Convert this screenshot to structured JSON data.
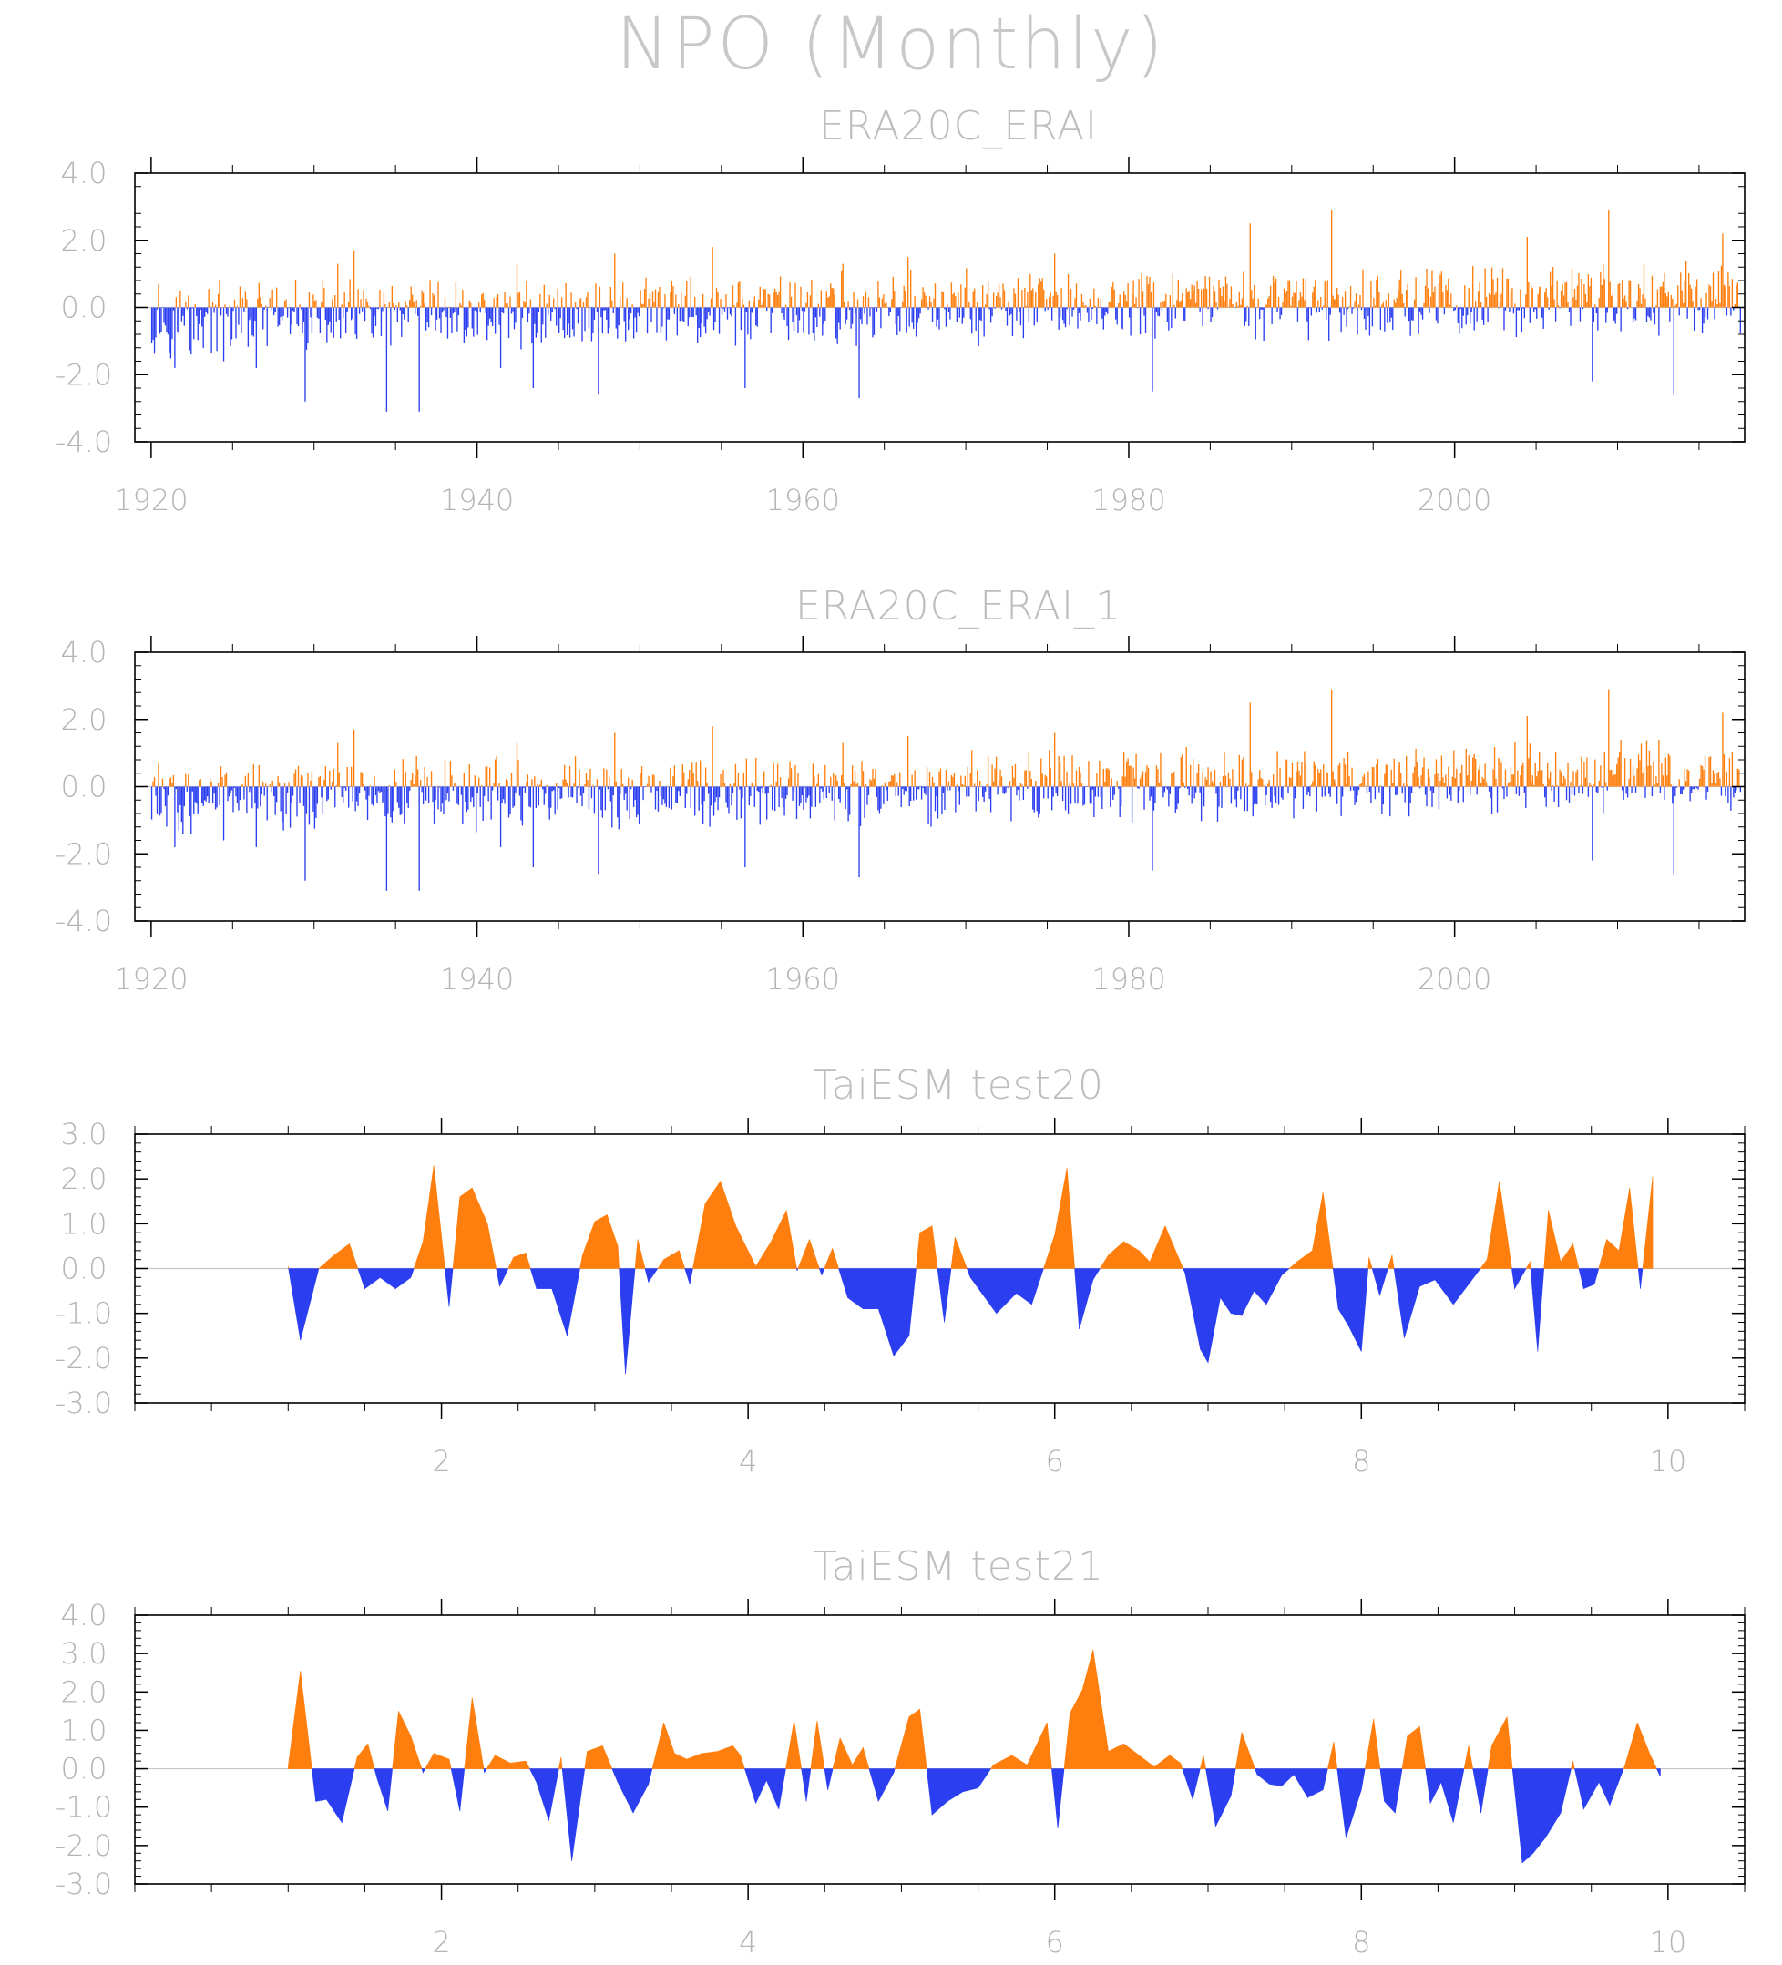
{
  "title": "NPO (Monthly)",
  "colors": {
    "positive": "#ff7f0e",
    "negative": "#2b3ff0",
    "text": "#bdbdbd"
  },
  "chart_data": [
    {
      "type": "bar",
      "title": "ERA20C_ERAI",
      "xlim": [
        1919.0,
        2017.8
      ],
      "ylim": [
        -4.0,
        4.0
      ],
      "yticks": [
        "4.0",
        "2.0",
        "0.0",
        "-2.0",
        "-4.0"
      ],
      "xticks": [
        "1920",
        "1940",
        "1960",
        "1980",
        "2000"
      ],
      "x_start": 1920.0,
      "x_step_months": 1,
      "values_description": "monthly anomaly bars, orange >= 0, blue < 0",
      "envelope_points": [
        {
          "x": 1920,
          "y": 0.7
        },
        {
          "x": 1921,
          "y": -1.8
        },
        {
          "x": 1922,
          "y": -1.4
        },
        {
          "x": 1924,
          "y": -1.6
        },
        {
          "x": 1926,
          "y": -1.8
        },
        {
          "x": 1929,
          "y": -2.8
        },
        {
          "x": 1931,
          "y": 1.3
        },
        {
          "x": 1932,
          "y": 1.7
        },
        {
          "x": 1934,
          "y": -3.1
        },
        {
          "x": 1936,
          "y": -3.1
        },
        {
          "x": 1941,
          "y": -1.8
        },
        {
          "x": 1942,
          "y": 1.3
        },
        {
          "x": 1943,
          "y": -2.4
        },
        {
          "x": 1947,
          "y": -2.6
        },
        {
          "x": 1948,
          "y": 1.6
        },
        {
          "x": 1954,
          "y": 1.8
        },
        {
          "x": 1956,
          "y": -2.4
        },
        {
          "x": 1962,
          "y": 1.3
        },
        {
          "x": 1963,
          "y": -2.7
        },
        {
          "x": 1966,
          "y": 1.5
        },
        {
          "x": 1975,
          "y": 1.6
        },
        {
          "x": 1981,
          "y": -2.5
        },
        {
          "x": 1987,
          "y": 2.5
        },
        {
          "x": 1992,
          "y": 2.9
        },
        {
          "x": 2004,
          "y": 2.1
        },
        {
          "x": 2008,
          "y": -2.2
        },
        {
          "x": 2009,
          "y": 2.9
        },
        {
          "x": 2013,
          "y": -2.6
        },
        {
          "x": 2016,
          "y": 2.2
        }
      ]
    },
    {
      "type": "bar",
      "title": "ERA20C_ERAI_1",
      "xlim": [
        1919.0,
        2017.8
      ],
      "ylim": [
        -4.0,
        4.0
      ],
      "yticks": [
        "4.0",
        "2.0",
        "0.0",
        "-2.0",
        "-4.0"
      ],
      "xticks": [
        "1920",
        "1940",
        "1960",
        "1980",
        "2000"
      ],
      "x_start": 1920.0,
      "x_step_months": 1,
      "values_description": "monthly anomaly bars, orange >= 0, blue < 0",
      "envelope_points": [
        {
          "x": 1920,
          "y": 0.7
        },
        {
          "x": 1921,
          "y": -1.8
        },
        {
          "x": 1922,
          "y": -1.4
        },
        {
          "x": 1924,
          "y": -1.6
        },
        {
          "x": 1926,
          "y": -1.8
        },
        {
          "x": 1929,
          "y": -2.8
        },
        {
          "x": 1931,
          "y": 1.3
        },
        {
          "x": 1932,
          "y": 1.7
        },
        {
          "x": 1934,
          "y": -3.1
        },
        {
          "x": 1936,
          "y": -3.1
        },
        {
          "x": 1941,
          "y": -1.8
        },
        {
          "x": 1942,
          "y": 1.3
        },
        {
          "x": 1943,
          "y": -2.4
        },
        {
          "x": 1947,
          "y": -2.6
        },
        {
          "x": 1948,
          "y": 1.6
        },
        {
          "x": 1954,
          "y": 1.8
        },
        {
          "x": 1956,
          "y": -2.4
        },
        {
          "x": 1962,
          "y": 1.3
        },
        {
          "x": 1963,
          "y": -2.7
        },
        {
          "x": 1966,
          "y": 1.5
        },
        {
          "x": 1975,
          "y": 1.6
        },
        {
          "x": 1981,
          "y": -2.5
        },
        {
          "x": 1987,
          "y": 2.5
        },
        {
          "x": 1992,
          "y": 2.9
        },
        {
          "x": 2004,
          "y": 2.1
        },
        {
          "x": 2008,
          "y": -2.2
        },
        {
          "x": 2009,
          "y": 2.9
        },
        {
          "x": 2013,
          "y": -2.6
        },
        {
          "x": 2016,
          "y": 2.2
        }
      ]
    },
    {
      "type": "area",
      "title": "TaiESM test20",
      "xlim": [
        0.0,
        10.5
      ],
      "ylim": [
        -3.0,
        3.0
      ],
      "yticks": [
        "3.0",
        "2.0",
        "1.0",
        "0.0",
        "-1.0",
        "-2.0",
        "-3.0"
      ],
      "xticks": [
        "2",
        "4",
        "6",
        "8",
        "10"
      ],
      "points": [
        [
          1.0,
          0.05
        ],
        [
          1.08,
          -1.6
        ],
        [
          1.2,
          0.0
        ],
        [
          1.3,
          0.3
        ],
        [
          1.4,
          0.55
        ],
        [
          1.5,
          -0.45
        ],
        [
          1.6,
          -0.2
        ],
        [
          1.7,
          -0.45
        ],
        [
          1.8,
          -0.2
        ],
        [
          1.88,
          0.6
        ],
        [
          1.95,
          2.3
        ],
        [
          2.05,
          -0.85
        ],
        [
          2.12,
          1.6
        ],
        [
          2.2,
          1.8
        ],
        [
          2.3,
          1.0
        ],
        [
          2.38,
          -0.4
        ],
        [
          2.47,
          0.25
        ],
        [
          2.55,
          0.35
        ],
        [
          2.62,
          -0.45
        ],
        [
          2.72,
          -0.45
        ],
        [
          2.82,
          -1.5
        ],
        [
          2.92,
          0.3
        ],
        [
          3.0,
          1.05
        ],
        [
          3.08,
          1.2
        ],
        [
          3.15,
          0.5
        ],
        [
          3.2,
          -2.35
        ],
        [
          3.28,
          0.65
        ],
        [
          3.35,
          -0.3
        ],
        [
          3.45,
          0.2
        ],
        [
          3.55,
          0.4
        ],
        [
          3.62,
          -0.35
        ],
        [
          3.72,
          1.45
        ],
        [
          3.82,
          1.95
        ],
        [
          3.92,
          0.95
        ],
        [
          4.05,
          0.05
        ],
        [
          4.15,
          0.6
        ],
        [
          4.25,
          1.3
        ],
        [
          4.32,
          -0.05
        ],
        [
          4.4,
          0.65
        ],
        [
          4.48,
          -0.15
        ],
        [
          4.55,
          0.45
        ],
        [
          4.65,
          -0.65
        ],
        [
          4.75,
          -0.9
        ],
        [
          4.85,
          -0.9
        ],
        [
          4.95,
          -1.95
        ],
        [
          5.05,
          -1.5
        ],
        [
          5.12,
          0.8
        ],
        [
          5.2,
          0.95
        ],
        [
          5.28,
          -1.2
        ],
        [
          5.35,
          0.7
        ],
        [
          5.45,
          -0.2
        ],
        [
          5.62,
          -1.0
        ],
        [
          5.75,
          -0.55
        ],
        [
          5.85,
          -0.8
        ],
        [
          6.0,
          0.75
        ],
        [
          6.08,
          2.25
        ],
        [
          6.16,
          -1.35
        ],
        [
          6.25,
          -0.25
        ],
        [
          6.35,
          0.3
        ],
        [
          6.45,
          0.6
        ],
        [
          6.55,
          0.4
        ],
        [
          6.62,
          0.15
        ],
        [
          6.72,
          0.95
        ],
        [
          6.85,
          -0.1
        ],
        [
          6.95,
          -1.8
        ],
        [
          7.0,
          -2.1
        ],
        [
          7.08,
          -0.65
        ],
        [
          7.15,
          -1.0
        ],
        [
          7.22,
          -1.05
        ],
        [
          7.3,
          -0.5
        ],
        [
          7.38,
          -0.8
        ],
        [
          7.48,
          -0.15
        ],
        [
          7.58,
          0.15
        ],
        [
          7.68,
          0.4
        ],
        [
          7.75,
          1.7
        ],
        [
          7.85,
          -0.9
        ],
        [
          7.92,
          -1.3
        ],
        [
          8.0,
          -1.85
        ],
        [
          8.05,
          0.25
        ],
        [
          8.12,
          -0.6
        ],
        [
          8.2,
          0.3
        ],
        [
          8.28,
          -1.55
        ],
        [
          8.38,
          -0.4
        ],
        [
          8.48,
          -0.25
        ],
        [
          8.6,
          -0.8
        ],
        [
          8.7,
          -0.35
        ],
        [
          8.82,
          0.2
        ],
        [
          8.9,
          1.95
        ],
        [
          9.0,
          -0.45
        ],
        [
          9.1,
          0.15
        ],
        [
          9.15,
          -1.85
        ],
        [
          9.22,
          1.3
        ],
        [
          9.3,
          0.15
        ],
        [
          9.38,
          0.55
        ],
        [
          9.45,
          -0.45
        ],
        [
          9.52,
          -0.35
        ],
        [
          9.6,
          0.65
        ],
        [
          9.68,
          0.4
        ],
        [
          9.75,
          1.8
        ],
        [
          9.82,
          -0.45
        ],
        [
          9.9,
          2.05
        ]
      ]
    },
    {
      "type": "area",
      "title": "TaiESM test21",
      "xlim": [
        0.0,
        10.5
      ],
      "ylim": [
        -3.0,
        4.0
      ],
      "yticks": [
        "4.0",
        "3.0",
        "2.0",
        "1.0",
        "0.0",
        "-1.0",
        "-2.0",
        "-3.0"
      ],
      "xticks": [
        "2",
        "4",
        "6",
        "8",
        "10"
      ],
      "points": [
        [
          1.0,
          0.05
        ],
        [
          1.08,
          2.55
        ],
        [
          1.18,
          -0.85
        ],
        [
          1.25,
          -0.8
        ],
        [
          1.35,
          -1.4
        ],
        [
          1.45,
          0.3
        ],
        [
          1.52,
          0.65
        ],
        [
          1.58,
          -0.25
        ],
        [
          1.65,
          -1.1
        ],
        [
          1.72,
          1.5
        ],
        [
          1.8,
          0.85
        ],
        [
          1.88,
          -0.1
        ],
        [
          1.95,
          0.4
        ],
        [
          2.05,
          0.25
        ],
        [
          2.12,
          -1.1
        ],
        [
          2.2,
          1.85
        ],
        [
          2.28,
          -0.1
        ],
        [
          2.35,
          0.35
        ],
        [
          2.45,
          0.15
        ],
        [
          2.55,
          0.2
        ],
        [
          2.62,
          -0.35
        ],
        [
          2.7,
          -1.35
        ],
        [
          2.78,
          0.3
        ],
        [
          2.85,
          -2.4
        ],
        [
          2.95,
          0.45
        ],
        [
          3.05,
          0.6
        ],
        [
          3.15,
          -0.35
        ],
        [
          3.25,
          -1.15
        ],
        [
          3.35,
          -0.4
        ],
        [
          3.45,
          1.2
        ],
        [
          3.52,
          0.4
        ],
        [
          3.6,
          0.25
        ],
        [
          3.7,
          0.4
        ],
        [
          3.8,
          0.45
        ],
        [
          3.9,
          0.6
        ],
        [
          3.95,
          0.35
        ],
        [
          4.05,
          -0.9
        ],
        [
          4.12,
          -0.3
        ],
        [
          4.2,
          -1.05
        ],
        [
          4.3,
          1.25
        ],
        [
          4.38,
          -0.85
        ],
        [
          4.45,
          1.25
        ],
        [
          4.52,
          -0.55
        ],
        [
          4.6,
          0.8
        ],
        [
          4.68,
          0.1
        ],
        [
          4.75,
          0.55
        ],
        [
          4.85,
          -0.85
        ],
        [
          4.95,
          -0.1
        ],
        [
          5.05,
          1.35
        ],
        [
          5.12,
          1.55
        ],
        [
          5.2,
          -1.2
        ],
        [
          5.3,
          -0.85
        ],
        [
          5.4,
          -0.6
        ],
        [
          5.5,
          -0.5
        ],
        [
          5.6,
          0.1
        ],
        [
          5.72,
          0.35
        ],
        [
          5.82,
          0.1
        ],
        [
          5.95,
          1.2
        ],
        [
          6.02,
          -1.55
        ],
        [
          6.1,
          1.45
        ],
        [
          6.18,
          2.05
        ],
        [
          6.25,
          3.1
        ],
        [
          6.35,
          0.45
        ],
        [
          6.45,
          0.65
        ],
        [
          6.55,
          0.35
        ],
        [
          6.65,
          0.05
        ],
        [
          6.75,
          0.35
        ],
        [
          6.82,
          0.15
        ],
        [
          6.9,
          -0.8
        ],
        [
          6.97,
          0.35
        ],
        [
          7.05,
          -1.5
        ],
        [
          7.15,
          -0.7
        ],
        [
          7.22,
          0.95
        ],
        [
          7.32,
          -0.15
        ],
        [
          7.4,
          -0.4
        ],
        [
          7.48,
          -0.45
        ],
        [
          7.56,
          -0.15
        ],
        [
          7.65,
          -0.75
        ],
        [
          7.75,
          -0.55
        ],
        [
          7.82,
          0.7
        ],
        [
          7.9,
          -1.8
        ],
        [
          8.0,
          -0.55
        ],
        [
          8.08,
          1.3
        ],
        [
          8.15,
          -0.85
        ],
        [
          8.22,
          -1.15
        ],
        [
          8.3,
          0.85
        ],
        [
          8.38,
          1.1
        ],
        [
          8.45,
          -0.9
        ],
        [
          8.52,
          -0.35
        ],
        [
          8.6,
          -1.4
        ],
        [
          8.7,
          0.6
        ],
        [
          8.78,
          -1.15
        ],
        [
          8.85,
          0.6
        ],
        [
          8.95,
          1.35
        ],
        [
          9.05,
          -2.45
        ],
        [
          9.12,
          -2.2
        ],
        [
          9.2,
          -1.8
        ],
        [
          9.3,
          -1.15
        ],
        [
          9.38,
          0.2
        ],
        [
          9.45,
          -1.05
        ],
        [
          9.55,
          -0.35
        ],
        [
          9.62,
          -0.95
        ],
        [
          9.72,
          0.1
        ],
        [
          9.8,
          1.2
        ],
        [
          9.88,
          0.4
        ],
        [
          9.95,
          -0.2
        ]
      ]
    }
  ]
}
